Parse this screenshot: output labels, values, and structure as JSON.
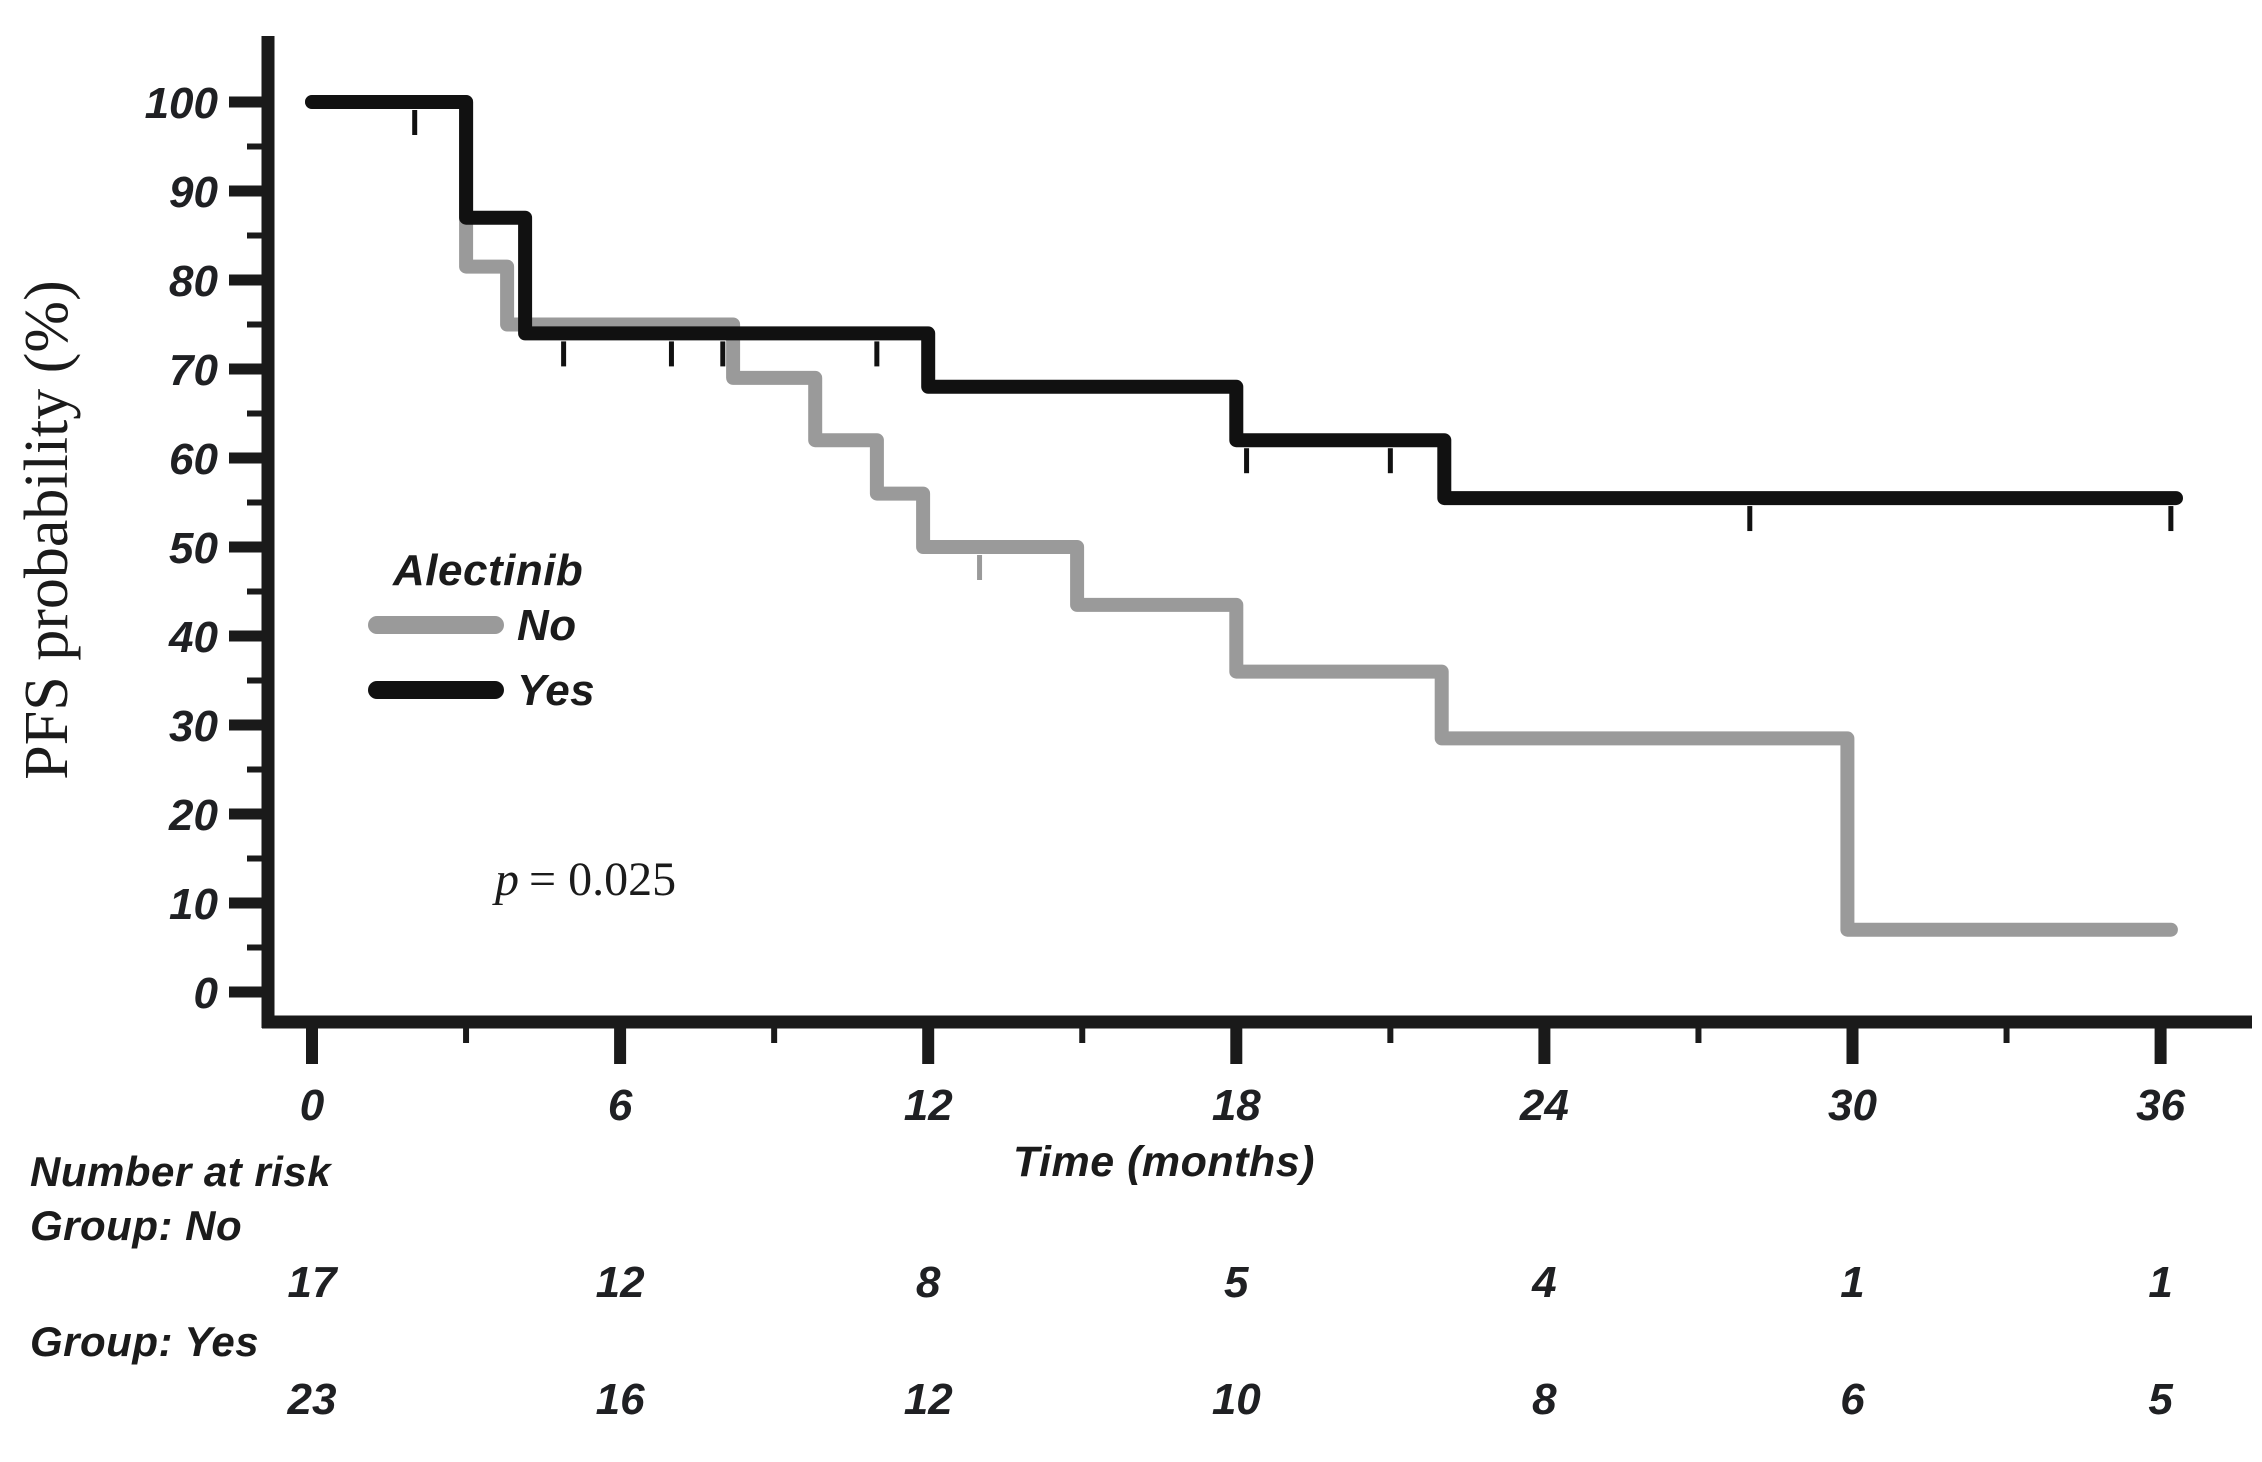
{
  "chart_data": {
    "type": "line",
    "subtype": "kaplan-meier-step",
    "title": "",
    "xlabel": "Time (months)",
    "ylabel": "PFS probability (%)",
    "xlim": [
      0,
      36
    ],
    "ylim": [
      0,
      100
    ],
    "x_major_ticks": [
      0,
      6,
      12,
      18,
      24,
      30,
      36
    ],
    "x_minor_ticks": [
      3,
      9,
      15,
      21,
      27,
      33
    ],
    "y_tick_step": 10,
    "y_minor_step": 5,
    "grid": false,
    "axis_color": "#1a1a1a",
    "annotation": {
      "prefix": "p",
      "text": "= 0.025"
    },
    "legend": {
      "title": "Alectinib",
      "position": "left-middle",
      "entries": [
        {
          "label": "No",
          "color": "#9a9a9a"
        },
        {
          "label": "Yes",
          "color": "#111111"
        }
      ]
    },
    "series": [
      {
        "name": "No",
        "color": "#9a9a9a",
        "points": [
          [
            0,
            100
          ],
          [
            3,
            100
          ],
          [
            3,
            81.5
          ],
          [
            3.8,
            81.5
          ],
          [
            3.8,
            75
          ],
          [
            8.2,
            75
          ],
          [
            8.2,
            69
          ],
          [
            9.8,
            69
          ],
          [
            9.8,
            62
          ],
          [
            11,
            62
          ],
          [
            11,
            56
          ],
          [
            11.9,
            56
          ],
          [
            11.9,
            50
          ],
          [
            14.9,
            50
          ],
          [
            14.9,
            43.5
          ],
          [
            18,
            43.5
          ],
          [
            18,
            36
          ],
          [
            22,
            36
          ],
          [
            22,
            28.5
          ],
          [
            29.9,
            28.5
          ],
          [
            29.9,
            7
          ],
          [
            36.2,
            7
          ]
        ],
        "censors": [
          [
            13,
            50
          ]
        ]
      },
      {
        "name": "Yes",
        "color": "#111111",
        "points": [
          [
            0,
            100
          ],
          [
            3,
            100
          ],
          [
            3,
            87
          ],
          [
            4.15,
            87
          ],
          [
            4.15,
            74
          ],
          [
            12,
            74
          ],
          [
            12,
            68
          ],
          [
            18,
            68
          ],
          [
            18,
            62
          ],
          [
            22.05,
            62
          ],
          [
            22.05,
            55.5
          ],
          [
            36.3,
            55.5
          ]
        ],
        "censors": [
          [
            2,
            100
          ],
          [
            4.9,
            74
          ],
          [
            7,
            74
          ],
          [
            8,
            74
          ],
          [
            11,
            74
          ],
          [
            18.2,
            62
          ],
          [
            21,
            62
          ],
          [
            28,
            55.5
          ],
          [
            36.2,
            55.5
          ]
        ]
      }
    ],
    "risk_table": {
      "heading": "Number at risk",
      "time_points": [
        0,
        6,
        12,
        18,
        24,
        30,
        36
      ],
      "rows": [
        {
          "label": "Group: No",
          "counts": [
            17,
            12,
            8,
            5,
            4,
            1,
            1
          ]
        },
        {
          "label": "Group: Yes",
          "counts": [
            23,
            16,
            12,
            10,
            8,
            6,
            5
          ]
        }
      ]
    }
  }
}
